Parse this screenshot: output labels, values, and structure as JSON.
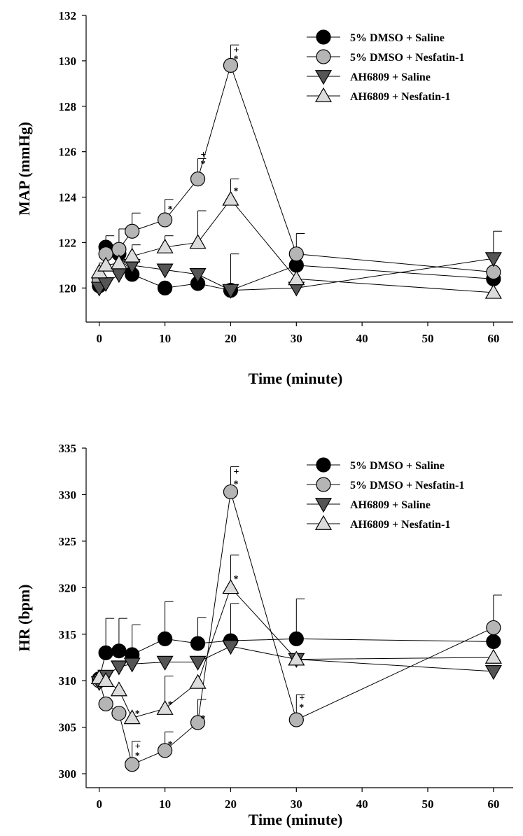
{
  "colors": {
    "dmso_saline": "#000000",
    "dmso_nesfatin": "#b5b5b5",
    "ah_saline": "#555555",
    "ah_nesfatin": "#dcdcdc",
    "axis": "#000000"
  },
  "chart_data": [
    {
      "type": "line",
      "title": "",
      "xlabel": "Time (minute)",
      "ylabel": "MAP (mmHg)",
      "xlim": [
        -2,
        63
      ],
      "ylim": [
        118.5,
        132
      ],
      "x_ticks": [
        0,
        10,
        20,
        30,
        40,
        50,
        60
      ],
      "y_ticks": [
        120,
        122,
        124,
        126,
        128,
        130,
        132
      ],
      "x": [
        0,
        1,
        3,
        5,
        10,
        15,
        20,
        30,
        60
      ],
      "series": [
        {
          "name": "5% DMSO + Saline",
          "marker": "circle",
          "color": "#000000",
          "values": [
            120.1,
            121.8,
            121.5,
            120.6,
            120.0,
            120.2,
            119.9,
            121.0,
            120.4
          ],
          "err": [
            0,
            0.5,
            0,
            0,
            0,
            0,
            0,
            0,
            0
          ]
        },
        {
          "name": "5% DMSO + Nesfatin-1",
          "marker": "circle",
          "color": "#b5b5b5",
          "values": [
            120.3,
            121.5,
            121.7,
            122.5,
            123.0,
            124.8,
            129.8,
            121.5,
            120.7
          ],
          "err": [
            0,
            0,
            0.9,
            0.8,
            0.9,
            0.9,
            0.9,
            0.9,
            0
          ]
        },
        {
          "name": "AH6809 + Saline",
          "marker": "triangle-down",
          "color": "#555555",
          "values": [
            120.0,
            120.2,
            120.6,
            121.0,
            120.8,
            120.6,
            119.9,
            120.0,
            121.3
          ],
          "err": [
            0,
            0,
            0,
            0,
            0,
            0,
            1.6,
            0,
            1.2
          ]
        },
        {
          "name": "AH6809 + Nesfatin-1",
          "marker": "triangle-up",
          "color": "#dcdcdc",
          "values": [
            120.7,
            121.0,
            121.1,
            121.4,
            121.8,
            122.0,
            123.9,
            120.4,
            119.8
          ],
          "err": [
            0.4,
            0,
            0,
            0.5,
            0.5,
            1.4,
            0.9,
            0,
            0
          ]
        }
      ],
      "annotations": [
        {
          "x": 10,
          "label": "*",
          "y": 123.5
        },
        {
          "x": 15,
          "label": "+",
          "y": 125.9
        },
        {
          "x": 15,
          "label": "*",
          "y": 125.5
        },
        {
          "x": 20,
          "label": "+",
          "y": 130.5
        },
        {
          "x": 20,
          "label": "*",
          "y": 130.1
        },
        {
          "x": 20,
          "label": "*",
          "y": 124.3
        }
      ],
      "legend": [
        {
          "label": "5% DMSO + Saline",
          "marker": "circle",
          "color": "#000000"
        },
        {
          "label": "5% DMSO + Nesfatin-1",
          "marker": "circle",
          "color": "#b5b5b5"
        },
        {
          "label": "AH6809 + Saline",
          "marker": "triangle-down",
          "color": "#555555"
        },
        {
          "label": "AH6809 + Nesfatin-1",
          "marker": "triangle-up",
          "color": "#dcdcdc"
        }
      ],
      "legend_position": "top-right"
    },
    {
      "type": "line",
      "title": "",
      "xlabel": "Time (minute)",
      "ylabel": "HR (bpm)",
      "xlim": [
        -2,
        63
      ],
      "ylim": [
        298.5,
        335
      ],
      "x_ticks": [
        0,
        10,
        20,
        30,
        40,
        50,
        60
      ],
      "y_ticks": [
        300,
        305,
        310,
        315,
        320,
        325,
        330,
        335
      ],
      "x": [
        0,
        1,
        3,
        5,
        10,
        15,
        20,
        30,
        60
      ],
      "series": [
        {
          "name": "5% DMSO + Saline",
          "marker": "circle",
          "color": "#000000",
          "values": [
            310.2,
            313.0,
            313.2,
            312.8,
            314.5,
            314.0,
            314.3,
            314.5,
            314.2
          ],
          "err": [
            0,
            3.7,
            3.5,
            3.2,
            4.0,
            2.8,
            4.0,
            4.3,
            0
          ]
        },
        {
          "name": "5% DMSO + Nesfatin-1",
          "marker": "circle",
          "color": "#b5b5b5",
          "values": [
            310.0,
            307.5,
            306.5,
            301.0,
            302.5,
            305.5,
            330.3,
            305.8,
            315.7
          ],
          "err": [
            0,
            0,
            0,
            2.5,
            2.0,
            2.5,
            2.7,
            2.7,
            3.5
          ]
        },
        {
          "name": "AH6809 + Saline",
          "marker": "triangle-down",
          "color": "#555555",
          "values": [
            309.8,
            310.5,
            311.5,
            311.8,
            312.0,
            312.0,
            313.7,
            312.3,
            311.0
          ],
          "err": [
            0,
            0,
            0,
            0,
            0,
            0,
            0,
            0,
            0
          ]
        },
        {
          "name": "AH6809 + Nesfatin-1",
          "marker": "triangle-up",
          "color": "#dcdcdc",
          "values": [
            310.3,
            310.0,
            309.0,
            306.0,
            307.0,
            309.8,
            320.0,
            312.3,
            312.5
          ],
          "err": [
            0,
            0,
            0,
            0,
            3.5,
            0,
            3.5,
            0,
            0
          ]
        }
      ],
      "annotations": [
        {
          "x": 5,
          "label": "*",
          "y": 306.5
        },
        {
          "x": 5,
          "label": "+",
          "y": 303.0
        },
        {
          "x": 5,
          "label": "*",
          "y": 302.0
        },
        {
          "x": 10,
          "label": "*",
          "y": 307.5
        },
        {
          "x": 10,
          "label": "*",
          "y": 303.2
        },
        {
          "x": 15,
          "label": "*",
          "y": 306.0
        },
        {
          "x": 20,
          "label": "+",
          "y": 332.5
        },
        {
          "x": 20,
          "label": "*",
          "y": 331.2
        },
        {
          "x": 20,
          "label": "*",
          "y": 321.0
        },
        {
          "x": 30,
          "label": "+",
          "y": 308.2
        },
        {
          "x": 30,
          "label": "*",
          "y": 307.2
        }
      ],
      "legend": [
        {
          "label": "5% DMSO + Saline",
          "marker": "circle",
          "color": "#000000"
        },
        {
          "label": "5% DMSO + Nesfatin-1",
          "marker": "circle",
          "color": "#b5b5b5"
        },
        {
          "label": "AH6809 + Saline",
          "marker": "triangle-down",
          "color": "#555555"
        },
        {
          "label": "AH6809 + Nesfatin-1",
          "marker": "triangle-up",
          "color": "#dcdcdc"
        }
      ],
      "legend_position": "top-right"
    }
  ]
}
